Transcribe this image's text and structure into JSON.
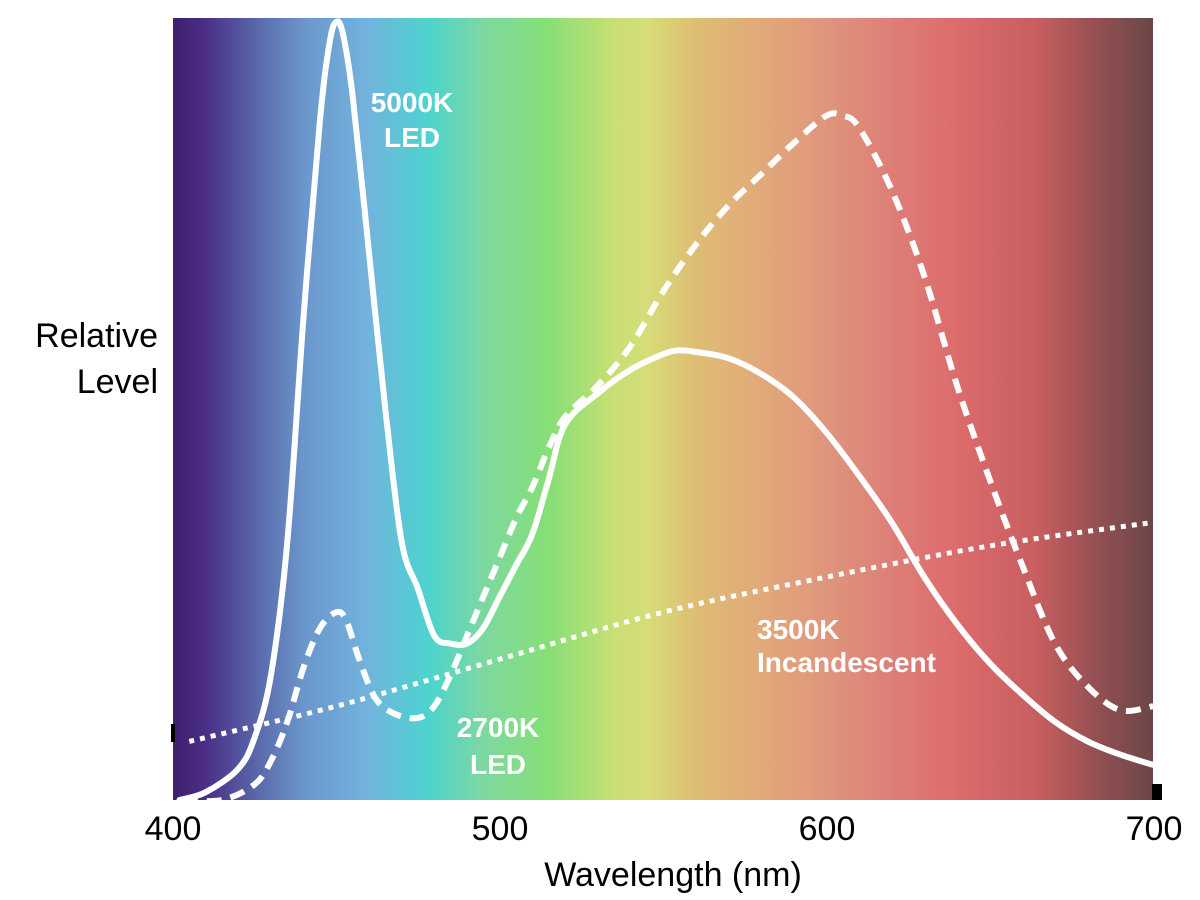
{
  "chart_data": {
    "type": "line",
    "title": "",
    "xlabel": "Wavelength (nm)",
    "ylabel_lines": [
      "Relative",
      "Level"
    ],
    "xlim": [
      400,
      700
    ],
    "ylim": [
      0,
      1
    ],
    "x_ticks": [
      400,
      500,
      600,
      700
    ],
    "x_tick_labels": [
      "400",
      "500",
      "600",
      "700"
    ],
    "background": "visible spectrum gradient",
    "gradient_stops": [
      {
        "wl": 400,
        "color": "#3f1e6e"
      },
      {
        "wl": 410,
        "color": "#4a2f86"
      },
      {
        "wl": 425,
        "color": "#5865a8"
      },
      {
        "wl": 440,
        "color": "#6b96cc"
      },
      {
        "wl": 460,
        "color": "#72b4dd"
      },
      {
        "wl": 478,
        "color": "#4cd3cf"
      },
      {
        "wl": 495,
        "color": "#7dd8a0"
      },
      {
        "wl": 515,
        "color": "#86df76"
      },
      {
        "wl": 535,
        "color": "#c8df74"
      },
      {
        "wl": 545,
        "color": "#d6dd78"
      },
      {
        "wl": 560,
        "color": "#dfbd74"
      },
      {
        "wl": 580,
        "color": "#e1a97a"
      },
      {
        "wl": 600,
        "color": "#df957c"
      },
      {
        "wl": 620,
        "color": "#dd7f77"
      },
      {
        "wl": 640,
        "color": "#dd6b6c"
      },
      {
        "wl": 665,
        "color": "#c65e5f"
      },
      {
        "wl": 685,
        "color": "#8e4e51"
      },
      {
        "wl": 700,
        "color": "#6d4647"
      }
    ],
    "series": [
      {
        "name": "5000K LED",
        "label_lines": [
          "5000K",
          "LED"
        ],
        "style": "solid",
        "color": "#ffffff",
        "points": [
          [
            402,
            0.0
          ],
          [
            410,
            0.01
          ],
          [
            420,
            0.04
          ],
          [
            425,
            0.08
          ],
          [
            430,
            0.16
          ],
          [
            435,
            0.33
          ],
          [
            440,
            0.62
          ],
          [
            445,
            0.87
          ],
          [
            448,
            0.97
          ],
          [
            450,
            0.995
          ],
          [
            452,
            0.98
          ],
          [
            455,
            0.9
          ],
          [
            460,
            0.7
          ],
          [
            465,
            0.5
          ],
          [
            470,
            0.33
          ],
          [
            475,
            0.27
          ],
          [
            480,
            0.21
          ],
          [
            485,
            0.2
          ],
          [
            490,
            0.2
          ],
          [
            495,
            0.22
          ],
          [
            500,
            0.26
          ],
          [
            505,
            0.3
          ],
          [
            510,
            0.34
          ],
          [
            515,
            0.41
          ],
          [
            520,
            0.48
          ],
          [
            530,
            0.52
          ],
          [
            540,
            0.55
          ],
          [
            550,
            0.57
          ],
          [
            555,
            0.575
          ],
          [
            560,
            0.573
          ],
          [
            570,
            0.565
          ],
          [
            580,
            0.545
          ],
          [
            590,
            0.515
          ],
          [
            600,
            0.47
          ],
          [
            610,
            0.415
          ],
          [
            620,
            0.355
          ],
          [
            630,
            0.285
          ],
          [
            640,
            0.225
          ],
          [
            650,
            0.175
          ],
          [
            660,
            0.135
          ],
          [
            670,
            0.1
          ],
          [
            680,
            0.075
          ],
          [
            690,
            0.058
          ],
          [
            700,
            0.045
          ]
        ]
      },
      {
        "name": "2700K LED",
        "label_lines": [
          "2700K",
          "LED"
        ],
        "style": "dashed",
        "color": "#ffffff",
        "points": [
          [
            403,
            0.0
          ],
          [
            415,
            0.0
          ],
          [
            425,
            0.02
          ],
          [
            430,
            0.05
          ],
          [
            435,
            0.1
          ],
          [
            440,
            0.17
          ],
          [
            445,
            0.22
          ],
          [
            450,
            0.24
          ],
          [
            453,
            0.23
          ],
          [
            457,
            0.18
          ],
          [
            462,
            0.13
          ],
          [
            468,
            0.11
          ],
          [
            475,
            0.105
          ],
          [
            480,
            0.12
          ],
          [
            485,
            0.16
          ],
          [
            490,
            0.21
          ],
          [
            495,
            0.26
          ],
          [
            500,
            0.31
          ],
          [
            505,
            0.36
          ],
          [
            510,
            0.4
          ],
          [
            515,
            0.45
          ],
          [
            520,
            0.49
          ],
          [
            530,
            0.53
          ],
          [
            540,
            0.58
          ],
          [
            550,
            0.65
          ],
          [
            560,
            0.71
          ],
          [
            570,
            0.76
          ],
          [
            580,
            0.8
          ],
          [
            590,
            0.84
          ],
          [
            600,
            0.875
          ],
          [
            605,
            0.875
          ],
          [
            610,
            0.86
          ],
          [
            620,
            0.78
          ],
          [
            630,
            0.67
          ],
          [
            640,
            0.53
          ],
          [
            650,
            0.41
          ],
          [
            660,
            0.3
          ],
          [
            670,
            0.2
          ],
          [
            680,
            0.145
          ],
          [
            690,
            0.115
          ],
          [
            700,
            0.12
          ]
        ]
      },
      {
        "name": "3500K Incandescent",
        "label_lines": [
          "3500K",
          "Incandescent"
        ],
        "style": "dotted",
        "color": "#ffffff",
        "points": [
          [
            405,
            0.075
          ],
          [
            450,
            0.12
          ],
          [
            500,
            0.18
          ],
          [
            550,
            0.24
          ],
          [
            600,
            0.285
          ],
          [
            650,
            0.325
          ],
          [
            700,
            0.355
          ]
        ]
      }
    ]
  }
}
